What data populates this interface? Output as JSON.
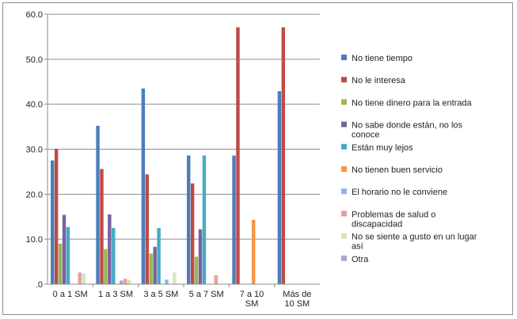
{
  "chart_data": {
    "type": "bar",
    "title": "",
    "xlabel": "",
    "ylabel": "",
    "ylim": [
      0,
      60
    ],
    "yticks": [
      ".0",
      "10.0",
      "20.0",
      "30.0",
      "40.0",
      "50.0",
      "60.0"
    ],
    "grid": true,
    "legend_position": "right",
    "categories": [
      [
        "0 a 1 SM"
      ],
      [
        "1 a 3 SM"
      ],
      [
        "3 a 5 SM"
      ],
      [
        "5 a 7 SM"
      ],
      [
        "7 a 10",
        "SM"
      ],
      [
        "Más de",
        "10 SM"
      ]
    ],
    "series": [
      {
        "name": "No tiene tiempo",
        "color": "#4a7ebb",
        "values": [
          27.5,
          35.2,
          43.5,
          28.6,
          28.6,
          42.9
        ]
      },
      {
        "name": "No le interesa",
        "color": "#be4b48",
        "values": [
          30.1,
          25.6,
          24.4,
          22.4,
          57.1,
          57.1
        ]
      },
      {
        "name": "No tiene dinero para la entrada",
        "color": "#98b954",
        "values": [
          9.0,
          7.8,
          6.8,
          6.1,
          0,
          0
        ]
      },
      {
        "name": [
          "No sabe donde están, no los",
          "conoce"
        ],
        "color": "#7d60a0",
        "values": [
          15.4,
          15.5,
          8.3,
          12.2,
          0,
          0
        ]
      },
      {
        "name": "Están muy lejos",
        "color": "#46aac5",
        "values": [
          12.7,
          12.5,
          12.5,
          28.6,
          0,
          0
        ]
      },
      {
        "name": "No tienen buen servicio",
        "color": "#f79646",
        "values": [
          0,
          0,
          0,
          0,
          14.3,
          0
        ]
      },
      {
        "name": "El horario no le conviene",
        "color": "#8db3e2",
        "values": [
          0,
          0.8,
          1.0,
          0,
          0,
          0
        ]
      },
      {
        "name": [
          "Problemas de salud o",
          "discapacidad"
        ],
        "color": "#e6a0a0",
        "values": [
          2.6,
          1.2,
          0,
          2.0,
          0,
          0
        ]
      },
      {
        "name": [
          "No se siente a gusto en un lugar",
          "así"
        ],
        "color": "#d7e4bc",
        "values": [
          2.4,
          1.0,
          2.6,
          0,
          0,
          0
        ]
      },
      {
        "name": "Otra",
        "color": "#b3a2c7",
        "values": [
          0,
          0,
          0,
          0,
          0,
          0
        ]
      }
    ]
  }
}
